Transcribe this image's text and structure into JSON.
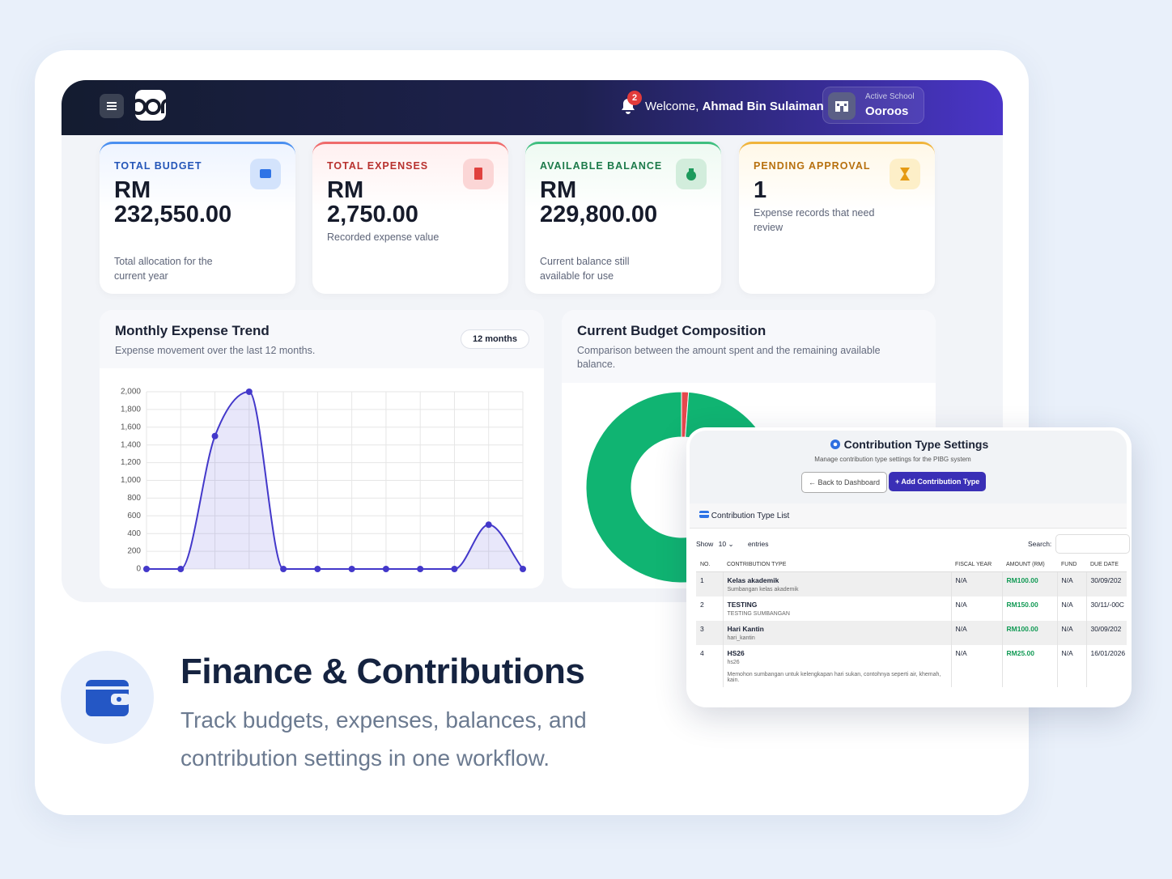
{
  "header": {
    "notifications": 2,
    "welcome": "Welcome,",
    "user": "Ahmad Bin Sulaiman",
    "school_label": "Active School",
    "school": "Ooroos"
  },
  "cards": [
    {
      "label": "TOTAL BUDGET",
      "value": "RM 232,550.00",
      "note": "Total allocation for the current year"
    },
    {
      "label": "TOTAL EXPENSES",
      "value": "RM 2,750.00",
      "note": "Recorded expense value"
    },
    {
      "label": "AVAILABLE BALANCE",
      "value": "RM 229,800.00",
      "note": "Current balance still available for use"
    },
    {
      "label": "PENDING APPROVAL",
      "value": "1",
      "note": "Expense records that need review"
    }
  ],
  "chart_data": [
    {
      "type": "line",
      "title": "Monthly Expense Trend",
      "subtitle": "Expense movement over the last 12 months.",
      "badge": "12 months",
      "categories": [
        null,
        null,
        null,
        null,
        null,
        null,
        null,
        null,
        null,
        null,
        null,
        null
      ],
      "values": [
        0,
        0,
        1500,
        2000,
        0,
        0,
        0,
        0,
        0,
        0,
        500,
        0
      ],
      "color": "#4338ca",
      "fill": "rgba(99,91,219,0.15)",
      "ylim": [
        0,
        2000
      ],
      "yticks": [
        0,
        200,
        400,
        600,
        800,
        {
          "value": 1000,
          "label": "1,000"
        },
        {
          "value": 1200,
          "label": "1,200"
        },
        {
          "value": 1400,
          "label": "1,400"
        },
        {
          "value": 1600,
          "label": "1,600"
        },
        {
          "value": 1800,
          "label": "1,800"
        },
        {
          "value": 2000,
          "label": "2,000"
        }
      ],
      "grid": true
    },
    {
      "type": "pie",
      "title": "Current Budget Composition",
      "subtitle": "Comparison between the amount spent and the remaining available balance.",
      "categories": [
        null,
        null
      ],
      "values": [
        2750,
        229800
      ],
      "colors": [
        "#e5484d",
        "#10b472"
      ],
      "donut": true
    }
  ],
  "settings": {
    "title": "Contribution Type Settings",
    "subtitle": "Manage contribution type settings for the PIBG system",
    "back_button": "Back to Dashboard",
    "add_button": "+ Add Contribution Type",
    "list_title": "Contribution Type List",
    "show": "Show",
    "page_size": "10",
    "entries": "entries",
    "search": "Search:",
    "table": {
      "columns": [
        "NO.",
        "CONTRIBUTION TYPE",
        "FISCAL YEAR",
        "AMOUNT (RM)",
        "FUND",
        "DUE DATE"
      ],
      "rows": [
        {
          "no": "1",
          "type": "Kelas akademik",
          "desc": "Sumbangan kelas akademik",
          "fiscal_year": "N/A",
          "amount": "RM100.00",
          "fund": "N/A",
          "due": "30/09/202"
        },
        {
          "no": "2",
          "type": "TESTING",
          "desc": "TESTING SUMBANGAN",
          "fiscal_year": "N/A",
          "amount": "RM150.00",
          "fund": "N/A",
          "due": "30/11/-00C"
        },
        {
          "no": "3",
          "type": "Hari Kantin",
          "desc": "hari_kantin",
          "fiscal_year": "N/A",
          "amount": "RM100.00",
          "fund": "N/A",
          "due": "30/09/202"
        },
        {
          "no": "4",
          "type": "HS26",
          "desc": "hs26",
          "note": "Memohon sumbangan untuk kelengkapan hari sukan, contohnya seperti air, khemah, kain.",
          "fiscal_year": "N/A",
          "amount": "RM25.00",
          "fund": "N/A",
          "due": "16/01/2026"
        }
      ]
    }
  },
  "feature": {
    "title": "Finance & Contributions",
    "description": "Track budgets, expenses, balances, and contribution settings in one workflow."
  }
}
